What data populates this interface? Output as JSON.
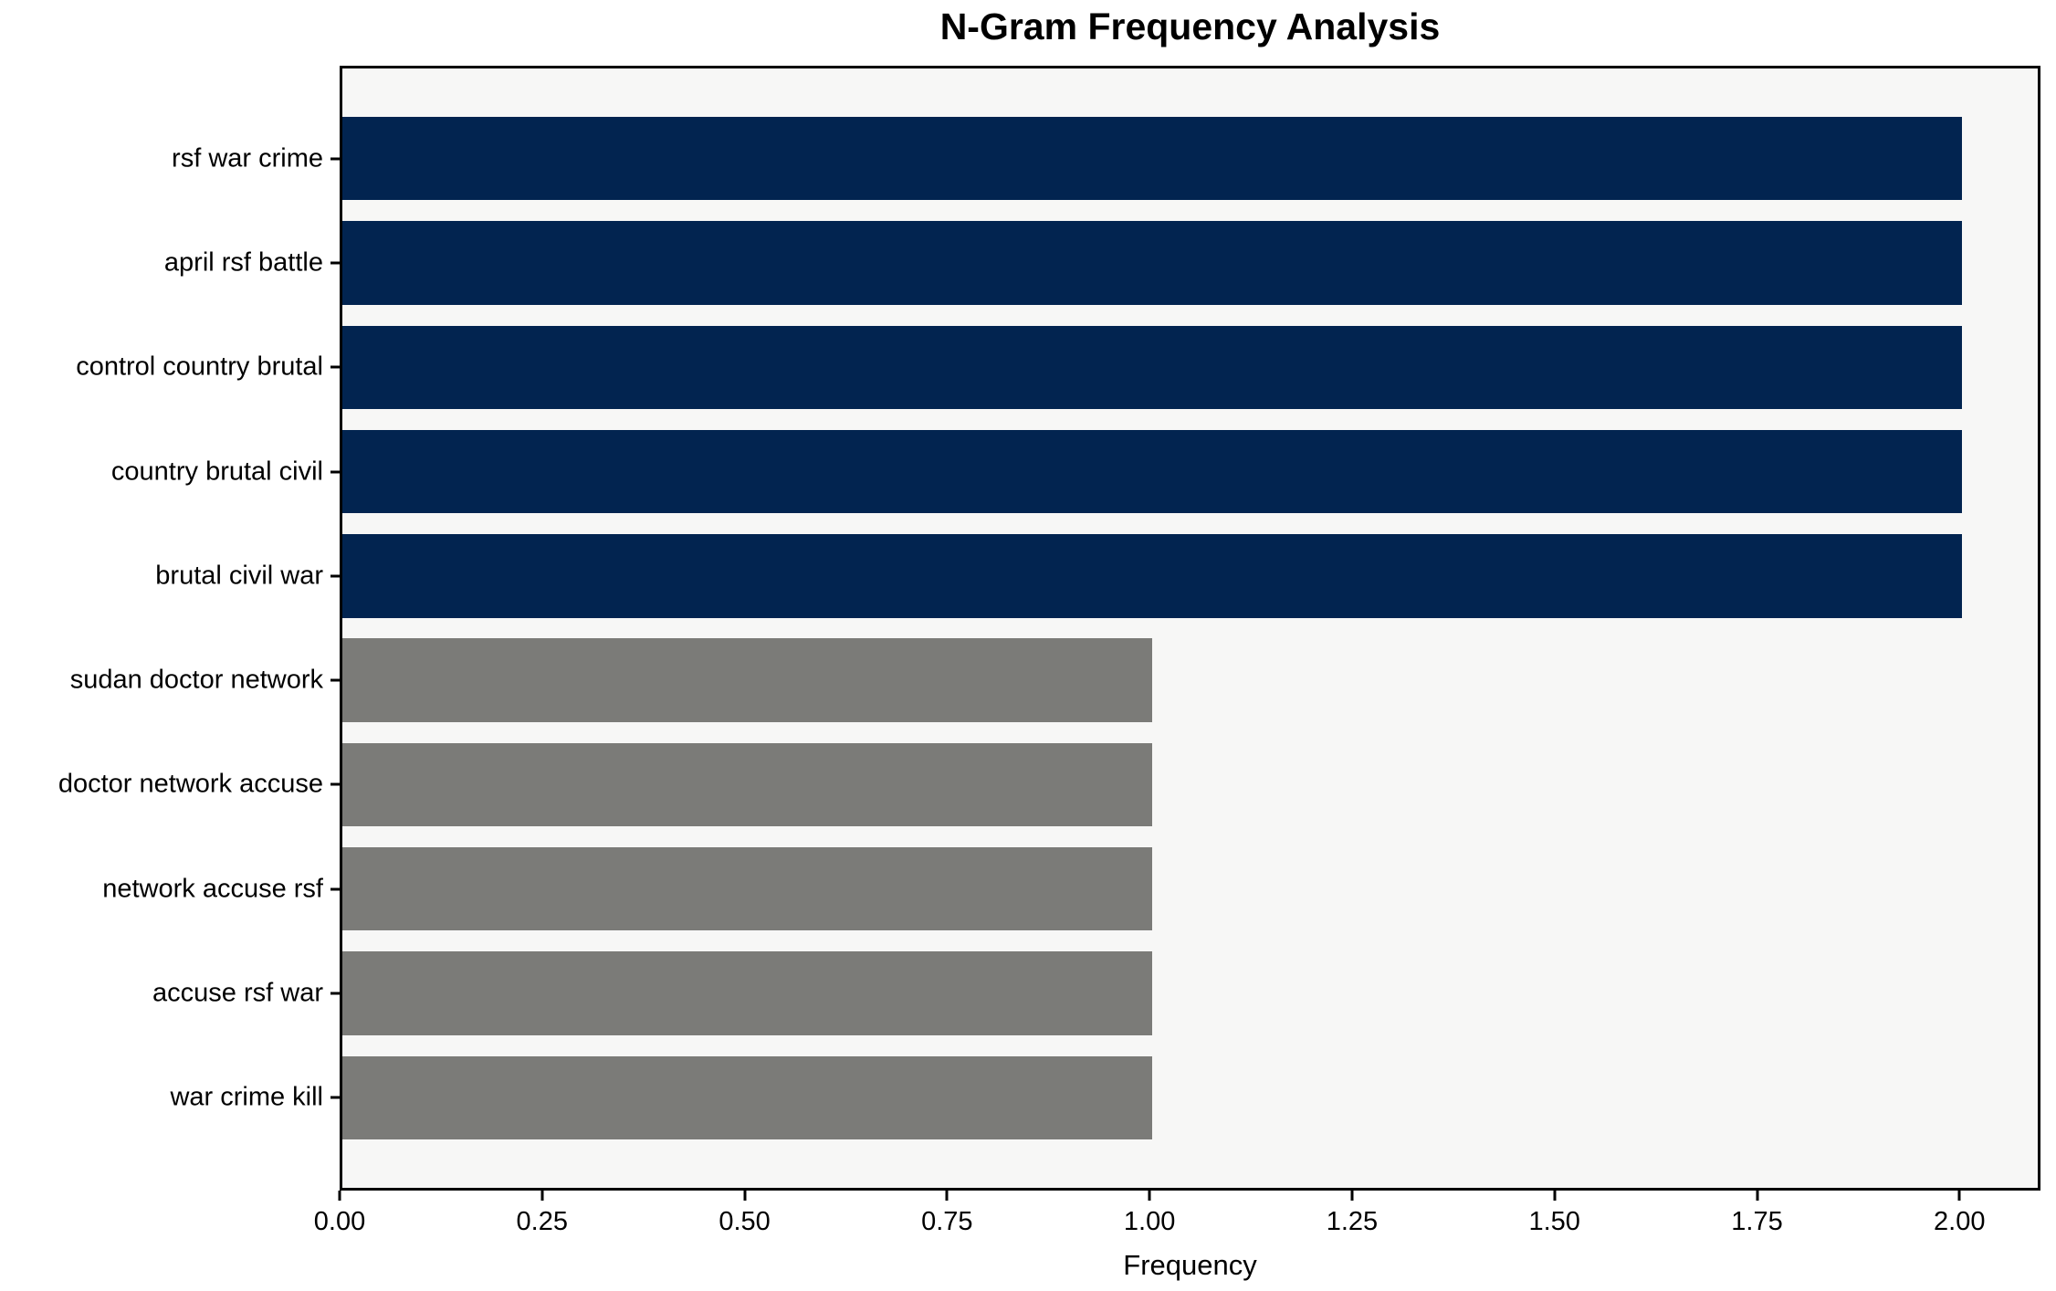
{
  "title": "N-Gram Frequency Analysis",
  "chart_data": {
    "type": "bar",
    "orientation": "horizontal",
    "title": "N-Gram Frequency Analysis",
    "xlabel": "Frequency",
    "ylabel": "",
    "categories": [
      "rsf war crime",
      "april rsf battle",
      "control country brutal",
      "country brutal civil",
      "brutal civil war",
      "sudan doctor network",
      "doctor network accuse",
      "network accuse rsf",
      "accuse rsf war",
      "war crime kill"
    ],
    "values": [
      2,
      2,
      2,
      2,
      2,
      1,
      1,
      1,
      1,
      1
    ],
    "bar_colors": [
      "#022450",
      "#022450",
      "#022450",
      "#022450",
      "#022450",
      "#7b7b78",
      "#7b7b78",
      "#7b7b78",
      "#7b7b78",
      "#7b7b78"
    ],
    "xlim": [
      0,
      2.1
    ],
    "x_ticks": [
      0.0,
      0.25,
      0.5,
      0.75,
      1.0,
      1.25,
      1.5,
      1.75,
      2.0
    ],
    "x_tick_labels": [
      "0.00",
      "0.25",
      "0.50",
      "0.75",
      "1.00",
      "1.25",
      "1.50",
      "1.75",
      "2.00"
    ],
    "grid": false,
    "legend": null,
    "plot_background": "#f7f7f6",
    "figure_background": "#ffffff",
    "accent_color_high": "#022450",
    "accent_color_low": "#7b7b78"
  }
}
